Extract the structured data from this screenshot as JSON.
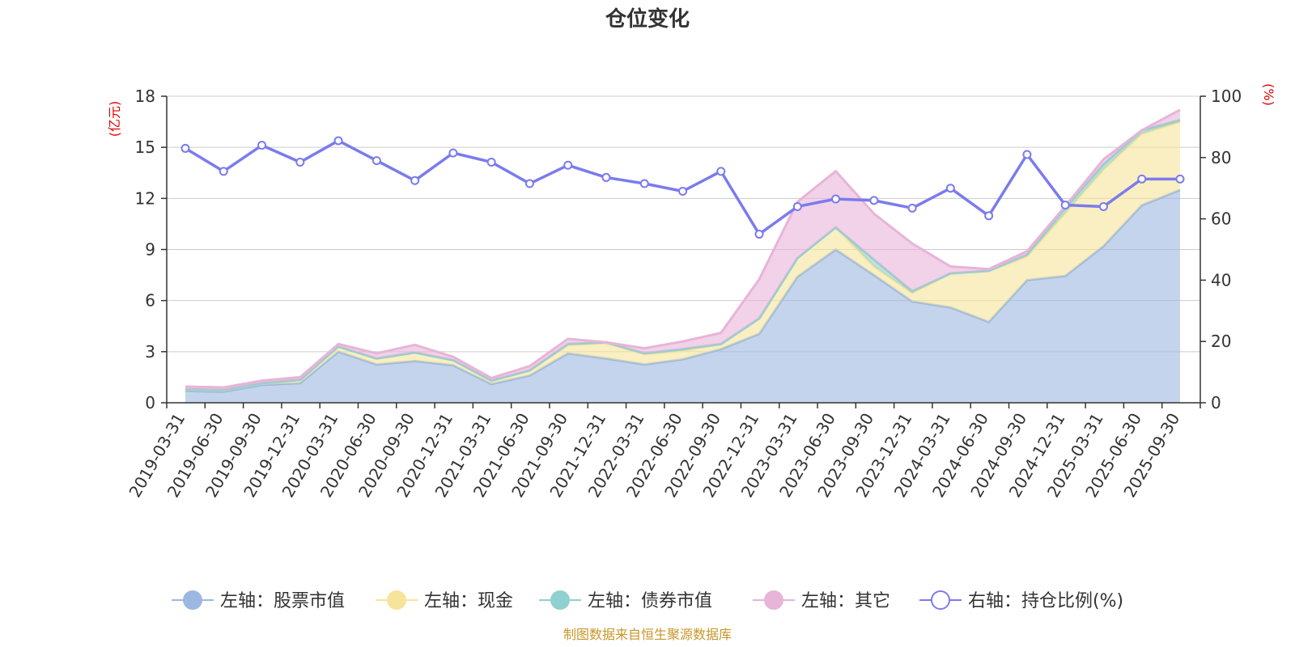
{
  "chart_data": {
    "type": "area",
    "title": "仓位变化",
    "left_unit": "(亿元)",
    "right_unit": "(%)",
    "left_ylim": [
      0,
      18
    ],
    "left_ticks": [
      0,
      3,
      6,
      9,
      12,
      15,
      18
    ],
    "right_ylim": [
      0,
      100
    ],
    "right_ticks": [
      0,
      20,
      40,
      60,
      80,
      100
    ],
    "categories": [
      "2019-03-31",
      "2019-06-30",
      "2019-09-30",
      "2019-12-31",
      "2020-03-31",
      "2020-06-30",
      "2020-09-30",
      "2020-12-31",
      "2021-03-31",
      "2021-06-30",
      "2021-09-30",
      "2021-12-31",
      "2022-03-31",
      "2022-06-30",
      "2022-09-30",
      "2022-12-31",
      "2023-03-31",
      "2023-06-30",
      "2023-09-30",
      "2023-12-31",
      "2024-03-31",
      "2024-06-30",
      "2024-09-30",
      "2024-12-31",
      "2025-03-31",
      "2025-06-30",
      "2025-09-30"
    ],
    "series": [
      {
        "name": "左轴：股票市值",
        "axis": "left",
        "color": "#9cb8e0",
        "values": [
          0.7,
          0.65,
          1.05,
          1.15,
          3.0,
          2.25,
          2.45,
          2.2,
          1.1,
          1.6,
          2.9,
          2.6,
          2.25,
          2.55,
          3.15,
          4.05,
          7.4,
          9.0,
          7.5,
          5.95,
          5.6,
          4.75,
          7.2,
          7.45,
          9.2,
          11.6,
          12.5
        ]
      },
      {
        "name": "左轴：现金",
        "axis": "left",
        "color": "#f5e49a",
        "values": [
          0.1,
          0.1,
          0.1,
          0.2,
          0.3,
          0.35,
          0.5,
          0.3,
          0.2,
          0.3,
          0.5,
          0.9,
          0.6,
          0.5,
          0.3,
          0.9,
          1.1,
          1.3,
          0.5,
          0.5,
          2.0,
          3.0,
          1.4,
          3.7,
          4.5,
          4.2,
          4.0
        ]
      },
      {
        "name": "左轴：债券市值",
        "axis": "left",
        "color": "#8fd0d0",
        "values": [
          0.0,
          0.0,
          0.0,
          0.0,
          0.0,
          0.0,
          0.0,
          0.0,
          0.0,
          0.0,
          0.05,
          0.05,
          0.05,
          0.1,
          0.0,
          0.0,
          0.0,
          0.0,
          0.4,
          0.1,
          0.0,
          0.0,
          0.1,
          0.3,
          0.3,
          0.2,
          0.1
        ]
      },
      {
        "name": "左轴：其它",
        "axis": "left",
        "color": "#e8b4d8",
        "values": [
          0.15,
          0.15,
          0.15,
          0.15,
          0.15,
          0.3,
          0.45,
          0.2,
          0.15,
          0.25,
          0.3,
          0.0,
          0.3,
          0.45,
          0.65,
          2.3,
          3.3,
          3.3,
          2.7,
          2.8,
          0.4,
          0.1,
          0.2,
          0.1,
          0.3,
          0.0,
          0.6
        ]
      },
      {
        "name": "右轴：持仓比例(%)",
        "axis": "right",
        "color": "#7b7bee",
        "values": [
          83.0,
          75.5,
          84.0,
          78.5,
          85.5,
          79.0,
          72.5,
          81.5,
          78.5,
          71.5,
          77.5,
          73.5,
          71.5,
          69.0,
          75.5,
          55.0,
          64.0,
          66.5,
          66.0,
          63.5,
          70.0,
          61.0,
          81.0,
          64.5,
          64.0,
          73.0,
          73.0
        ]
      }
    ]
  },
  "footer": {
    "source": "制图数据来自恒生聚源数据库"
  }
}
